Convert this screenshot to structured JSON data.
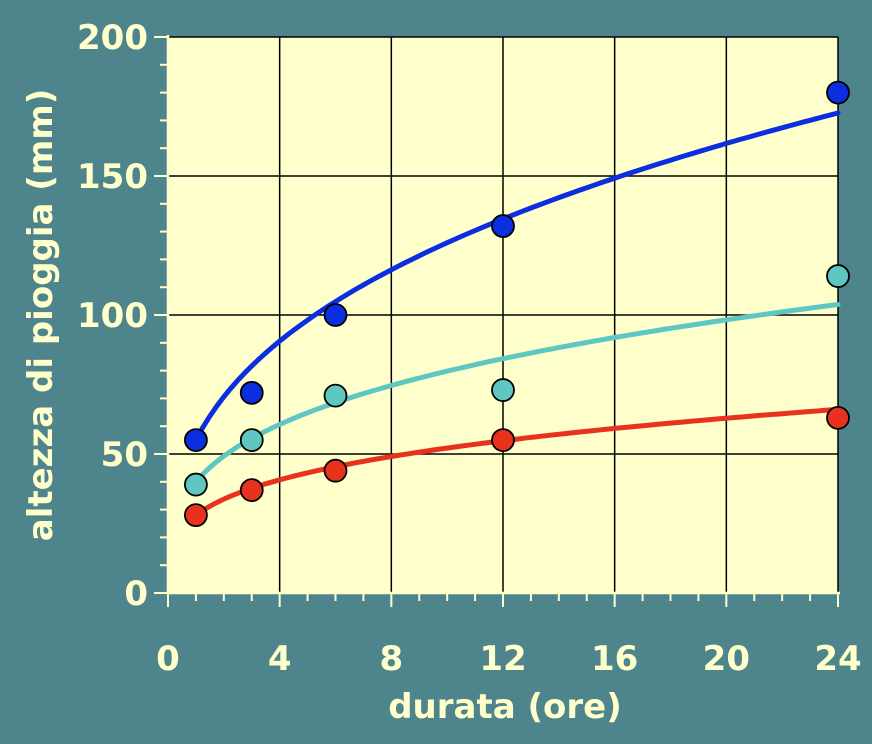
{
  "chart_data": {
    "type": "scatter",
    "title": "",
    "xlabel": "durata (ore)",
    "ylabel": "altezza di pioggia (mm)",
    "xlim": [
      0,
      24
    ],
    "ylim": [
      0,
      200
    ],
    "xticks": [
      0,
      4,
      8,
      12,
      16,
      20,
      24
    ],
    "yticks": [
      0,
      50,
      100,
      150,
      200
    ],
    "grid": true,
    "colors": {
      "background": "#4e858d",
      "plot_area": "#ffffcc",
      "text": "#ffffcc",
      "grid": "#000000"
    },
    "series": [
      {
        "color": "#0a2ee0",
        "points": {
          "x": [
            1,
            3,
            6,
            12,
            24
          ],
          "y": [
            55,
            72,
            100,
            132,
            180
          ]
        },
        "curve": {
          "a": 55,
          "n": 0.36
        }
      },
      {
        "color": "#5ec7c2",
        "points": {
          "x": [
            1,
            3,
            6,
            12,
            24
          ],
          "y": [
            39,
            55,
            71,
            73,
            114
          ]
        },
        "curve": {
          "a": 40,
          "n": 0.3
        }
      },
      {
        "color": "#e8321e",
        "points": {
          "x": [
            1,
            3,
            6,
            12,
            24
          ],
          "y": [
            28,
            37,
            44,
            55,
            63
          ]
        },
        "curve": {
          "a": 28,
          "n": 0.27
        }
      }
    ]
  }
}
